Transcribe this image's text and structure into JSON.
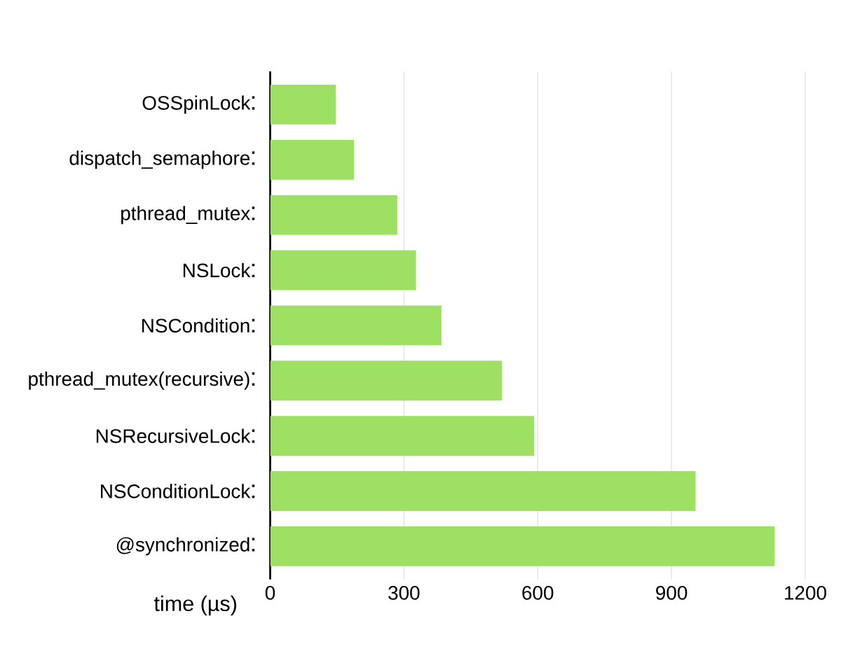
{
  "chart_data": {
    "type": "bar",
    "orientation": "horizontal",
    "categories": [
      "OSSpinLock",
      "dispatch_semaphore",
      "pthread_mutex",
      "NSLock",
      "NSCondition",
      "pthread_mutex(recursive)",
      "NSRecursiveLock",
      "NSConditionLock",
      "@synchronized"
    ],
    "values": [
      147,
      188,
      285,
      327,
      384,
      520,
      592,
      954,
      1131
    ],
    "color": "#9ee064",
    "xlabel": "time (µs)",
    "xlim": [
      0,
      1200
    ],
    "xticks": [
      0,
      300,
      600,
      900,
      1200
    ],
    "grid": "x"
  }
}
